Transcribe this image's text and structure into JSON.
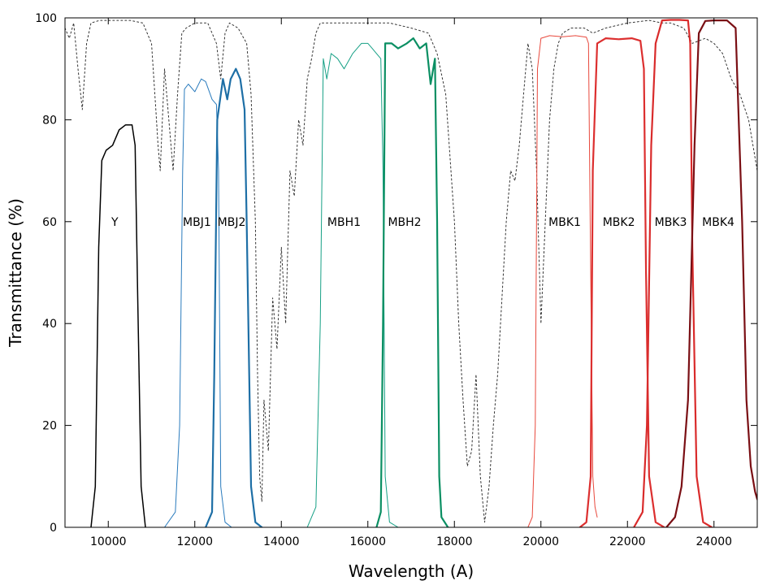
{
  "chart_data": {
    "type": "line",
    "title": "",
    "xlabel": "Wavelength (A)",
    "ylabel": "Transmittance (%)",
    "xlim": [
      9000,
      25000
    ],
    "ylim": [
      0,
      100
    ],
    "xticks": [
      "10000",
      "12000",
      "14000",
      "16000",
      "18000",
      "20000",
      "22000",
      "24000"
    ],
    "yticks": [
      "0",
      "20",
      "40",
      "60",
      "80",
      "100"
    ],
    "grid": false,
    "legend": "none",
    "series": [
      {
        "name": "Y",
        "color": "#000000",
        "width": 1.5,
        "label_at": [
          10150,
          60
        ],
        "x": [
          9600,
          9700,
          9780,
          9850,
          9950,
          10100,
          10250,
          10400,
          10550,
          10620,
          10680,
          10760,
          10860
        ],
        "y": [
          0,
          8,
          55,
          72,
          74,
          75,
          78,
          79,
          79,
          75,
          45,
          8,
          0
        ]
      },
      {
        "name": "MBJ1",
        "color": "#2a7bbd",
        "width": 1,
        "label_at": [
          12050,
          60
        ],
        "x": [
          11300,
          11550,
          11650,
          11720,
          11760,
          11850,
          12000,
          12150,
          12250,
          12400,
          12500,
          12550,
          12600,
          12700,
          12850
        ],
        "y": [
          0,
          3,
          20,
          70,
          86,
          87,
          85.5,
          88,
          87.5,
          84,
          83,
          70,
          8,
          1,
          0
        ]
      },
      {
        "name": "MBJ2",
        "color": "#1e6fa6",
        "width": 2.2,
        "label_at": [
          12850,
          60
        ],
        "x": [
          12250,
          12400,
          12450,
          12520,
          12650,
          12750,
          12830,
          12950,
          13050,
          13150,
          13200,
          13300,
          13400,
          13550
        ],
        "y": [
          0,
          3,
          30,
          80,
          88,
          84,
          88,
          90,
          88,
          82,
          60,
          8,
          1,
          0
        ]
      },
      {
        "name": "MBH1",
        "color": "#16a085",
        "width": 1,
        "label_at": [
          15450,
          60
        ],
        "x": [
          14600,
          14800,
          14900,
          14970,
          15050,
          15150,
          15300,
          15450,
          15650,
          15850,
          16000,
          16100,
          16200,
          16300,
          16350,
          16400,
          16500,
          16700
        ],
        "y": [
          0,
          4,
          40,
          92,
          88,
          93,
          92,
          90,
          93,
          95,
          95,
          94,
          93,
          92,
          70,
          10,
          1,
          0
        ]
      },
      {
        "name": "MBH2",
        "color": "#0b8f63",
        "width": 2.2,
        "label_at": [
          16850,
          60
        ],
        "x": [
          16200,
          16300,
          16350,
          16400,
          16550,
          16700,
          16900,
          17050,
          17200,
          17350,
          17450,
          17550,
          17600,
          17650,
          17700,
          17850
        ],
        "y": [
          0,
          3,
          40,
          95,
          95,
          94,
          95,
          96,
          94,
          95,
          87,
          92,
          60,
          10,
          2,
          0
        ]
      },
      {
        "name": "MBK1",
        "color": "#e8483c",
        "width": 1,
        "label_at": [
          20550,
          60
        ],
        "x": [
          19700,
          19800,
          19870,
          19920,
          20000,
          20200,
          20500,
          20800,
          21050,
          21100,
          21150,
          21200,
          21250,
          21300
        ],
        "y": [
          0,
          2,
          20,
          90,
          96,
          96.5,
          96.3,
          96.5,
          96.2,
          95,
          50,
          10,
          4,
          2
        ]
      },
      {
        "name": "MBK2",
        "color": "#dc2f2f",
        "width": 2.2,
        "label_at": [
          21800,
          60
        ],
        "x": [
          20900,
          21050,
          21150,
          21200,
          21300,
          21500,
          21800,
          22100,
          22300,
          22380,
          22430,
          22500,
          22650,
          22850
        ],
        "y": [
          0,
          1,
          10,
          70,
          95,
          96,
          95.8,
          96,
          95.5,
          90,
          50,
          10,
          1,
          0
        ]
      },
      {
        "name": "MBK3",
        "color": "#d92b2b",
        "width": 2.2,
        "label_at": [
          23000,
          60
        ],
        "x": [
          22150,
          22350,
          22450,
          22550,
          22650,
          22800,
          23000,
          23200,
          23400,
          23450,
          23500,
          23600,
          23750,
          23950
        ],
        "y": [
          0,
          3,
          20,
          75,
          95,
          99.5,
          99.6,
          99.6,
          99.5,
          95,
          55,
          10,
          1,
          0
        ]
      },
      {
        "name": "MBK4",
        "color": "#7a0f14",
        "width": 2.2,
        "label_at": [
          24100,
          60
        ],
        "x": [
          22900,
          23100,
          23250,
          23400,
          23550,
          23650,
          23800,
          24000,
          24300,
          24500,
          24650,
          24750,
          24850,
          24950,
          25000
        ],
        "y": [
          0,
          2,
          8,
          25,
          75,
          97,
          99.4,
          99.5,
          99.5,
          98,
          60,
          25,
          12,
          7,
          5.5
        ]
      },
      {
        "name": "",
        "color": "#333333",
        "width": 1,
        "dash": "2,3",
        "x": [
          9000,
          9100,
          9200,
          9300,
          9400,
          9500,
          9600,
          9800,
          10000,
          10500,
          10800,
          11000,
          11100,
          11150,
          11200,
          11300,
          11400,
          11500,
          11600,
          11700,
          11800,
          12000,
          12300,
          12500,
          12600,
          12700,
          12800,
          13000,
          13200,
          13300,
          13400,
          13450,
          13500,
          13550,
          13600,
          13700,
          13800,
          13900,
          14000,
          14100,
          14200,
          14300,
          14400,
          14500,
          14600,
          14700,
          14800,
          14900,
          15000,
          15200,
          15500,
          16000,
          16500,
          17000,
          17400,
          17600,
          17800,
          18000,
          18100,
          18200,
          18300,
          18400,
          18500,
          18600,
          18700,
          18800,
          18900,
          19000,
          19100,
          19200,
          19300,
          19400,
          19500,
          19600,
          19700,
          19800,
          19900,
          20000,
          20100,
          20200,
          20300,
          20400,
          20500,
          20700,
          21000,
          21200,
          21500,
          22000,
          22500,
          22800,
          23000,
          23300,
          23500,
          23800,
          24000,
          24200,
          24400,
          24600,
          24800,
          25000
        ],
        "y": [
          98,
          96,
          99,
          90,
          82,
          95,
          99,
          99.5,
          99.5,
          99.5,
          99,
          95,
          82,
          75,
          70,
          90,
          80,
          70,
          85,
          97,
          98,
          99,
          99,
          95,
          88,
          97,
          99,
          98,
          95,
          85,
          60,
          30,
          10,
          5,
          25,
          15,
          45,
          35,
          55,
          40,
          70,
          65,
          80,
          75,
          88,
          92,
          97,
          99,
          99,
          99,
          99,
          99,
          99,
          98,
          97,
          93,
          85,
          60,
          40,
          25,
          12,
          15,
          30,
          10,
          1,
          8,
          20,
          30,
          45,
          60,
          70,
          68,
          75,
          85,
          95,
          90,
          70,
          40,
          60,
          80,
          90,
          95,
          97,
          98,
          98,
          97,
          98,
          99,
          99.5,
          99,
          99,
          98,
          95,
          96,
          95,
          93,
          88,
          85,
          80,
          70
        ]
      }
    ]
  }
}
